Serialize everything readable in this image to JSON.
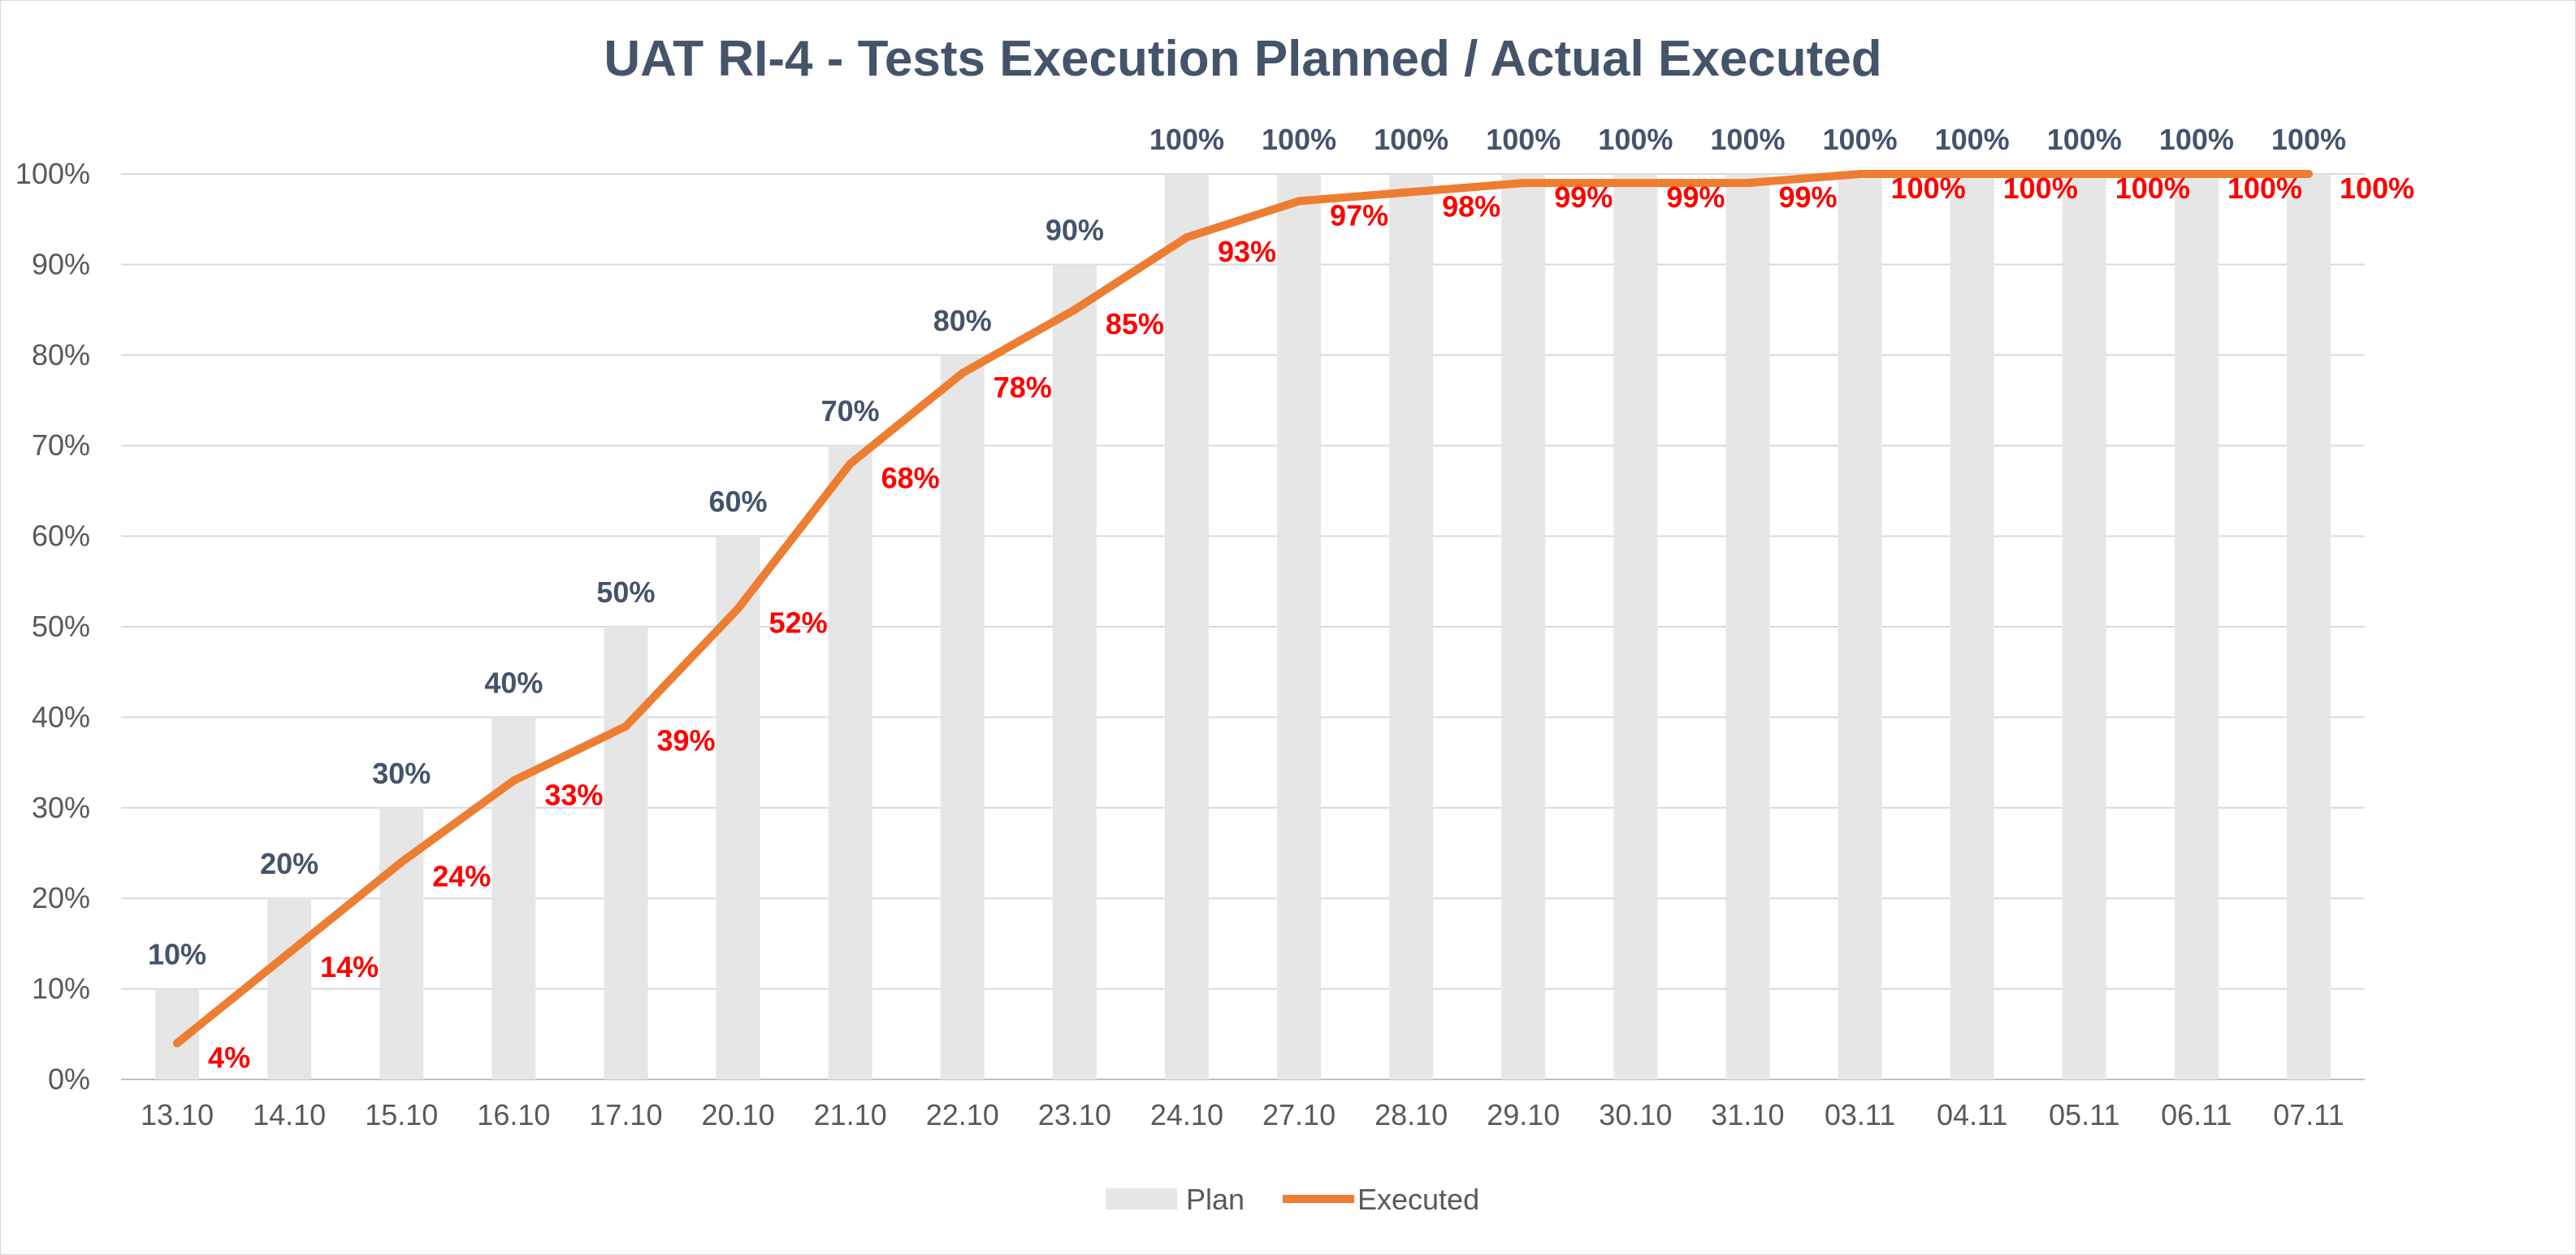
{
  "chart_data": {
    "type": "bar",
    "title": "UAT RI-4 - Tests Execution Planned / Actual Executed",
    "categories": [
      "13.10",
      "14.10",
      "15.10",
      "16.10",
      "17.10",
      "20.10",
      "21.10",
      "22.10",
      "23.10",
      "24.10",
      "27.10",
      "28.10",
      "29.10",
      "30.10",
      "31.10",
      "03.11",
      "04.11",
      "05.11",
      "06.11",
      "07.11"
    ],
    "y_ticks": [
      "0%",
      "10%",
      "20%",
      "30%",
      "40%",
      "50%",
      "60%",
      "70%",
      "80%",
      "90%",
      "100%"
    ],
    "ylim": [
      0,
      100
    ],
    "grid": true,
    "legend_position": "bottom",
    "series": [
      {
        "name": "Plan",
        "kind": "bar",
        "color": "#e7e6e6",
        "label_color": "#44546a",
        "values": [
          10,
          20,
          30,
          40,
          50,
          60,
          70,
          80,
          90,
          100,
          100,
          100,
          100,
          100,
          100,
          100,
          100,
          100,
          100,
          100
        ],
        "labels": [
          "10%",
          "20%",
          "30%",
          "40%",
          "50%",
          "60%",
          "70%",
          "80%",
          "90%",
          "100%",
          "100%",
          "100%",
          "100%",
          "100%",
          "100%",
          "100%",
          "100%",
          "100%",
          "100%",
          "100%"
        ]
      },
      {
        "name": "Executed",
        "kind": "line",
        "color": "#ed7d31",
        "label_color": "#ff0000",
        "values": [
          4,
          14,
          24,
          33,
          39,
          52,
          68,
          78,
          85,
          93,
          97,
          98,
          99,
          99,
          99,
          100,
          100,
          100,
          100,
          100
        ],
        "labels": [
          "4%",
          "14%",
          "24%",
          "33%",
          "39%",
          "52%",
          "68%",
          "78%",
          "85%",
          "93%",
          "97%",
          "98%",
          "99%",
          "99%",
          "99%",
          "100%",
          "100%",
          "100%",
          "100%",
          "100%"
        ]
      }
    ]
  }
}
